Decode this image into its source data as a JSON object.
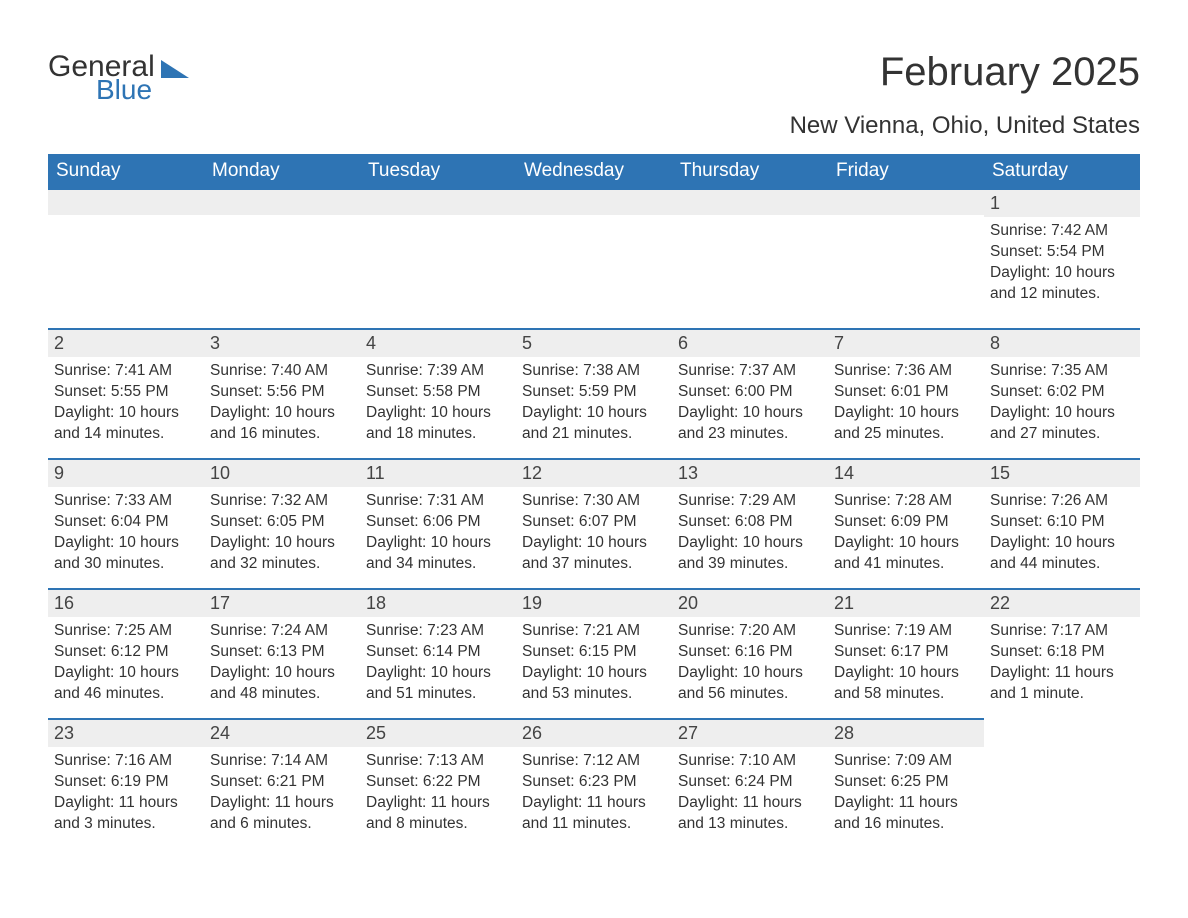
{
  "brand": {
    "part1": "General",
    "part2": "Blue"
  },
  "title": "February 2025",
  "location": "New Vienna, Ohio, United States",
  "colors": {
    "header_bg": "#2e74b4",
    "header_text": "#ffffff",
    "daybar_bg": "#eeeeee",
    "daybar_border": "#2e74b4",
    "body_text": "#333333",
    "page_bg": "#ffffff"
  },
  "typography": {
    "title_fontsize": 40,
    "location_fontsize": 24,
    "weekday_fontsize": 19,
    "daynum_fontsize": 18,
    "body_fontsize": 15.5,
    "font_family": "Segoe UI"
  },
  "weekdays": [
    "Sunday",
    "Monday",
    "Tuesday",
    "Wednesday",
    "Thursday",
    "Friday",
    "Saturday"
  ],
  "weeks": [
    [
      null,
      null,
      null,
      null,
      null,
      null,
      {
        "n": "1",
        "sunrise": "Sunrise: 7:42 AM",
        "sunset": "Sunset: 5:54 PM",
        "day": "Daylight: 10 hours and 12 minutes."
      }
    ],
    [
      {
        "n": "2",
        "sunrise": "Sunrise: 7:41 AM",
        "sunset": "Sunset: 5:55 PM",
        "day": "Daylight: 10 hours and 14 minutes."
      },
      {
        "n": "3",
        "sunrise": "Sunrise: 7:40 AM",
        "sunset": "Sunset: 5:56 PM",
        "day": "Daylight: 10 hours and 16 minutes."
      },
      {
        "n": "4",
        "sunrise": "Sunrise: 7:39 AM",
        "sunset": "Sunset: 5:58 PM",
        "day": "Daylight: 10 hours and 18 minutes."
      },
      {
        "n": "5",
        "sunrise": "Sunrise: 7:38 AM",
        "sunset": "Sunset: 5:59 PM",
        "day": "Daylight: 10 hours and 21 minutes."
      },
      {
        "n": "6",
        "sunrise": "Sunrise: 7:37 AM",
        "sunset": "Sunset: 6:00 PM",
        "day": "Daylight: 10 hours and 23 minutes."
      },
      {
        "n": "7",
        "sunrise": "Sunrise: 7:36 AM",
        "sunset": "Sunset: 6:01 PM",
        "day": "Daylight: 10 hours and 25 minutes."
      },
      {
        "n": "8",
        "sunrise": "Sunrise: 7:35 AM",
        "sunset": "Sunset: 6:02 PM",
        "day": "Daylight: 10 hours and 27 minutes."
      }
    ],
    [
      {
        "n": "9",
        "sunrise": "Sunrise: 7:33 AM",
        "sunset": "Sunset: 6:04 PM",
        "day": "Daylight: 10 hours and 30 minutes."
      },
      {
        "n": "10",
        "sunrise": "Sunrise: 7:32 AM",
        "sunset": "Sunset: 6:05 PM",
        "day": "Daylight: 10 hours and 32 minutes."
      },
      {
        "n": "11",
        "sunrise": "Sunrise: 7:31 AM",
        "sunset": "Sunset: 6:06 PM",
        "day": "Daylight: 10 hours and 34 minutes."
      },
      {
        "n": "12",
        "sunrise": "Sunrise: 7:30 AM",
        "sunset": "Sunset: 6:07 PM",
        "day": "Daylight: 10 hours and 37 minutes."
      },
      {
        "n": "13",
        "sunrise": "Sunrise: 7:29 AM",
        "sunset": "Sunset: 6:08 PM",
        "day": "Daylight: 10 hours and 39 minutes."
      },
      {
        "n": "14",
        "sunrise": "Sunrise: 7:28 AM",
        "sunset": "Sunset: 6:09 PM",
        "day": "Daylight: 10 hours and 41 minutes."
      },
      {
        "n": "15",
        "sunrise": "Sunrise: 7:26 AM",
        "sunset": "Sunset: 6:10 PM",
        "day": "Daylight: 10 hours and 44 minutes."
      }
    ],
    [
      {
        "n": "16",
        "sunrise": "Sunrise: 7:25 AM",
        "sunset": "Sunset: 6:12 PM",
        "day": "Daylight: 10 hours and 46 minutes."
      },
      {
        "n": "17",
        "sunrise": "Sunrise: 7:24 AM",
        "sunset": "Sunset: 6:13 PM",
        "day": "Daylight: 10 hours and 48 minutes."
      },
      {
        "n": "18",
        "sunrise": "Sunrise: 7:23 AM",
        "sunset": "Sunset: 6:14 PM",
        "day": "Daylight: 10 hours and 51 minutes."
      },
      {
        "n": "19",
        "sunrise": "Sunrise: 7:21 AM",
        "sunset": "Sunset: 6:15 PM",
        "day": "Daylight: 10 hours and 53 minutes."
      },
      {
        "n": "20",
        "sunrise": "Sunrise: 7:20 AM",
        "sunset": "Sunset: 6:16 PM",
        "day": "Daylight: 10 hours and 56 minutes."
      },
      {
        "n": "21",
        "sunrise": "Sunrise: 7:19 AM",
        "sunset": "Sunset: 6:17 PM",
        "day": "Daylight: 10 hours and 58 minutes."
      },
      {
        "n": "22",
        "sunrise": "Sunrise: 7:17 AM",
        "sunset": "Sunset: 6:18 PM",
        "day": "Daylight: 11 hours and 1 minute."
      }
    ],
    [
      {
        "n": "23",
        "sunrise": "Sunrise: 7:16 AM",
        "sunset": "Sunset: 6:19 PM",
        "day": "Daylight: 11 hours and 3 minutes."
      },
      {
        "n": "24",
        "sunrise": "Sunrise: 7:14 AM",
        "sunset": "Sunset: 6:21 PM",
        "day": "Daylight: 11 hours and 6 minutes."
      },
      {
        "n": "25",
        "sunrise": "Sunrise: 7:13 AM",
        "sunset": "Sunset: 6:22 PM",
        "day": "Daylight: 11 hours and 8 minutes."
      },
      {
        "n": "26",
        "sunrise": "Sunrise: 7:12 AM",
        "sunset": "Sunset: 6:23 PM",
        "day": "Daylight: 11 hours and 11 minutes."
      },
      {
        "n": "27",
        "sunrise": "Sunrise: 7:10 AM",
        "sunset": "Sunset: 6:24 PM",
        "day": "Daylight: 11 hours and 13 minutes."
      },
      {
        "n": "28",
        "sunrise": "Sunrise: 7:09 AM",
        "sunset": "Sunset: 6:25 PM",
        "day": "Daylight: 11 hours and 16 minutes."
      },
      null
    ]
  ]
}
